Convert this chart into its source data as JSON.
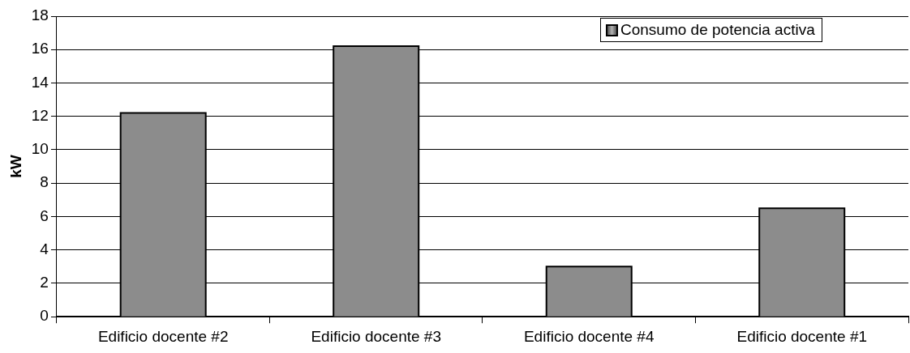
{
  "chart_data": {
    "type": "bar",
    "ylabel": "kW",
    "categories": [
      "Edificio docente #2",
      "Edificio docente #3",
      "Edificio docente #4",
      "Edificio docente #1"
    ],
    "series": [
      {
        "name": "Consumo de potencia activa",
        "color": "#8c8c8c",
        "values": [
          12.2,
          16.2,
          3.0,
          6.5
        ]
      }
    ],
    "ylim": [
      0,
      18
    ],
    "yticks": [
      0,
      2,
      4,
      6,
      8,
      10,
      12,
      14,
      16,
      18
    ],
    "grid": "y",
    "legend": "top right"
  }
}
